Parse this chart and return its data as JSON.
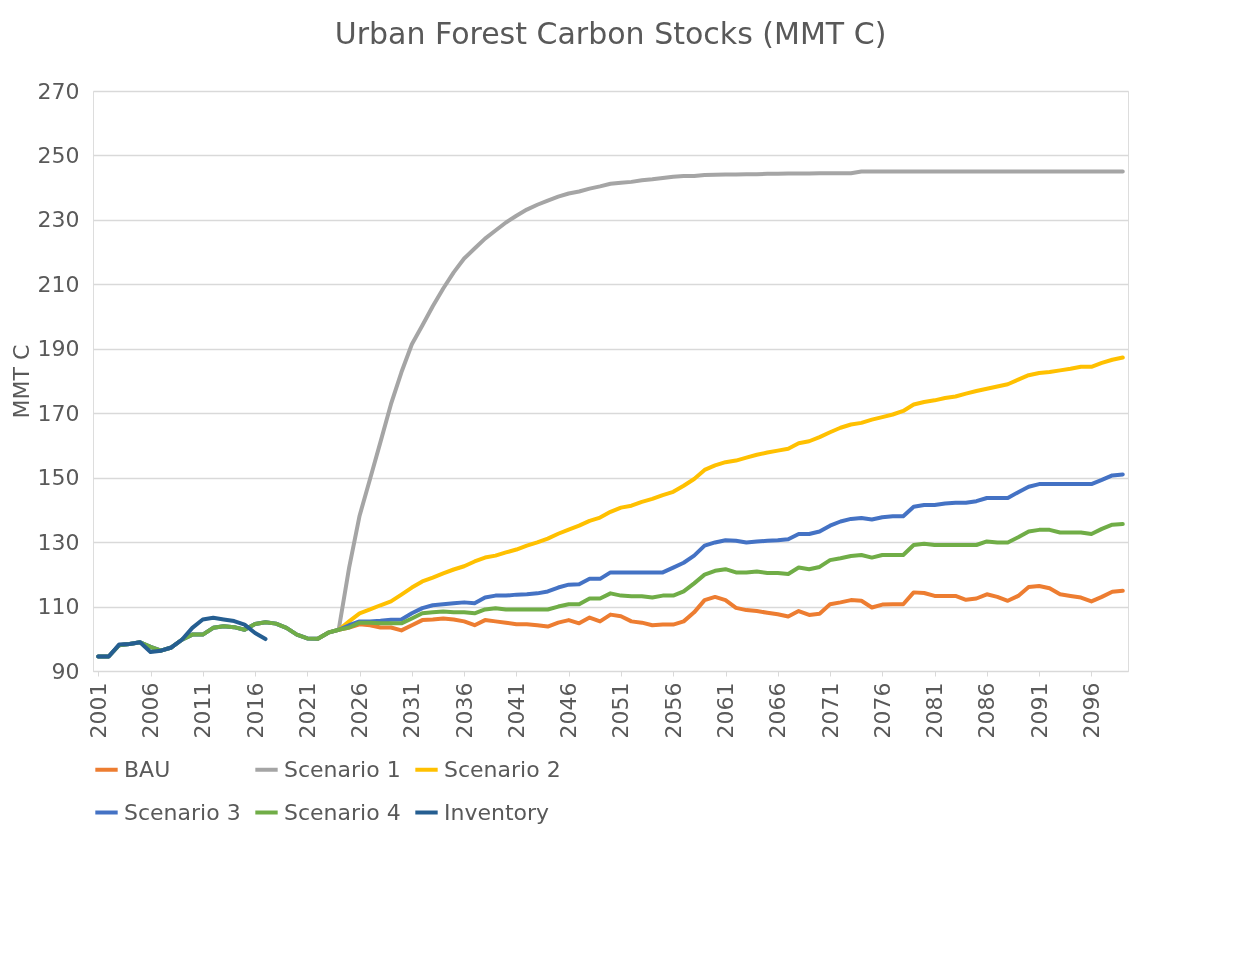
{
  "chart_data": {
    "type": "line",
    "title": "Urban Forest Carbon Stocks (MMT C)",
    "ylabel": "MMT C",
    "x": [
      2001,
      2002,
      2003,
      2004,
      2005,
      2006,
      2007,
      2008,
      2009,
      2010,
      2011,
      2012,
      2013,
      2014,
      2015,
      2016,
      2017,
      2018,
      2019,
      2020,
      2021,
      2022,
      2023,
      2024,
      2025,
      2026,
      2027,
      2028,
      2029,
      2030,
      2031,
      2032,
      2033,
      2034,
      2035,
      2036,
      2037,
      2038,
      2039,
      2040,
      2041,
      2042,
      2043,
      2044,
      2045,
      2046,
      2047,
      2048,
      2049,
      2050,
      2051,
      2052,
      2053,
      2054,
      2055,
      2056,
      2057,
      2058,
      2059,
      2060,
      2061,
      2062,
      2063,
      2064,
      2065,
      2066,
      2067,
      2068,
      2069,
      2070,
      2071,
      2072,
      2073,
      2074,
      2075,
      2076,
      2077,
      2078,
      2079,
      2080,
      2081,
      2082,
      2083,
      2084,
      2085,
      2086,
      2087,
      2088,
      2089,
      2090,
      2091,
      2092,
      2093,
      2094,
      2095,
      2096,
      2097,
      2098,
      2099
    ],
    "xlim": [
      2000.5,
      2099.5
    ],
    "xticks": [
      2001,
      2006,
      2011,
      2016,
      2021,
      2026,
      2031,
      2036,
      2041,
      2046,
      2051,
      2056,
      2061,
      2066,
      2071,
      2076,
      2081,
      2086,
      2091,
      2096
    ],
    "ylim": [
      90,
      270
    ],
    "yticks": [
      90,
      110,
      130,
      150,
      170,
      190,
      210,
      230,
      250,
      270
    ],
    "grid": "y",
    "legend": "bottom",
    "line_style": "solid",
    "series": [
      {
        "name": "BAU",
        "color": "#ed7d31",
        "values": [
          null,
          null,
          null,
          null,
          null,
          null,
          null,
          null,
          null,
          null,
          null,
          null,
          null,
          null,
          null,
          null,
          null,
          null,
          null,
          null,
          null,
          null,
          null,
          102.8,
          103.5,
          104.5,
          104.2,
          103.5,
          103.5,
          102.6,
          104.2,
          105.8,
          106.0,
          106.3,
          106.0,
          105.4,
          104.2,
          105.8,
          105.4,
          105.0,
          104.5,
          104.5,
          104.2,
          103.8,
          105.0,
          105.8,
          104.8,
          106.6,
          105.4,
          107.5,
          107.0,
          105.4,
          105.0,
          104.2,
          104.4,
          104.4,
          105.4,
          108.2,
          112.0,
          113.0,
          112.0,
          109.6,
          108.9,
          108.6,
          108.1,
          107.6,
          106.9,
          108.6,
          107.4,
          107.8,
          110.7,
          111.3,
          112.0,
          111.8,
          109.7,
          110.6,
          110.7,
          110.7,
          114.4,
          114.2,
          113.3,
          113.3,
          113.3,
          112.1,
          112.5,
          113.8,
          113.0,
          111.8,
          113.3,
          116.1,
          116.4,
          115.7,
          113.8,
          113.3,
          112.8,
          111.6,
          113.0,
          114.6,
          114.9
        ]
      },
      {
        "name": "Scenario 1",
        "color": "#a5a5a5",
        "values": [
          94.5,
          94.5,
          98.0,
          98.4,
          98.9,
          97.5,
          96.3,
          97.3,
          99.7,
          101.3,
          101.3,
          103.4,
          103.9,
          103.6,
          102.8,
          104.6,
          105.1,
          104.7,
          103.4,
          101.3,
          100.1,
          100.0,
          101.9,
          102.8,
          122.1,
          138.2,
          149.6,
          161.1,
          172.8,
          182.7,
          191.4,
          197.2,
          203.2,
          208.7,
          213.7,
          218.0,
          221.1,
          224.2,
          226.7,
          229.2,
          231.3,
          233.2,
          234.7,
          236.0,
          237.2,
          238.2,
          238.8,
          239.7,
          240.4,
          241.2,
          241.5,
          241.8,
          242.3,
          242.6,
          243.0,
          243.4,
          243.6,
          243.6,
          243.9,
          244.0,
          244.1,
          244.1,
          244.2,
          244.2,
          244.3,
          244.3,
          244.4,
          244.4,
          244.4,
          244.5,
          244.5,
          244.5,
          244.5,
          245.0,
          245.0,
          245.0,
          245.0,
          245.0,
          245.0,
          245.0,
          245.0,
          245.0,
          245.0,
          245.0,
          245.0,
          245.0,
          245.0,
          245.0,
          245.0,
          245.0,
          245.0,
          245.0,
          245.0,
          245.0,
          245.0,
          245.0,
          245.0,
          245.0,
          245.0
        ]
      },
      {
        "name": "Scenario 2",
        "color": "#ffc000",
        "values": [
          null,
          null,
          null,
          null,
          null,
          null,
          null,
          null,
          null,
          null,
          null,
          null,
          null,
          null,
          null,
          null,
          null,
          null,
          null,
          null,
          null,
          100.0,
          101.9,
          102.8,
          105.4,
          107.9,
          109.1,
          110.4,
          111.6,
          113.7,
          115.9,
          117.8,
          119.0,
          120.3,
          121.5,
          122.5,
          124.0,
          125.2,
          125.8,
          126.8,
          127.7,
          128.9,
          129.9,
          131.1,
          132.6,
          133.9,
          135.1,
          136.6,
          137.6,
          139.4,
          140.7,
          141.3,
          142.5,
          143.4,
          144.6,
          145.6,
          147.5,
          149.6,
          152.4,
          153.8,
          154.8,
          155.3,
          156.2,
          157.1,
          157.8,
          158.4,
          159.0,
          160.7,
          161.3,
          162.6,
          164.1,
          165.5,
          166.5,
          167.0,
          168.0,
          168.8,
          169.6,
          170.7,
          172.7,
          173.5,
          174.0,
          174.7,
          175.2,
          176.1,
          176.9,
          177.6,
          178.3,
          179.0,
          180.4,
          181.8,
          182.5,
          182.8,
          183.3,
          183.8,
          184.4,
          184.4,
          185.6,
          186.6,
          187.3
        ]
      },
      {
        "name": "Scenario 3",
        "color": "#4472c4",
        "values": [
          94.5,
          94.5,
          98.0,
          98.4,
          98.9,
          97.5,
          96.3,
          97.3,
          99.7,
          101.3,
          101.3,
          103.4,
          103.9,
          103.6,
          102.8,
          104.6,
          105.1,
          104.7,
          103.4,
          101.3,
          100.1,
          100.0,
          101.9,
          102.8,
          104.2,
          105.4,
          105.4,
          105.6,
          105.9,
          106.0,
          107.9,
          109.5,
          110.4,
          110.7,
          111.0,
          111.3,
          111.0,
          112.8,
          113.4,
          113.4,
          113.7,
          113.8,
          114.1,
          114.7,
          115.9,
          116.8,
          116.9,
          118.6,
          118.6,
          120.6,
          120.6,
          120.6,
          120.6,
          120.6,
          120.6,
          122.1,
          123.6,
          125.8,
          128.9,
          129.9,
          130.6,
          130.4,
          129.9,
          130.2,
          130.4,
          130.6,
          130.9,
          132.5,
          132.5,
          133.3,
          135.1,
          136.4,
          137.2,
          137.5,
          137.0,
          137.7,
          138.0,
          138.0,
          141.0,
          141.5,
          141.5,
          142.0,
          142.2,
          142.2,
          142.7,
          143.7,
          143.7,
          143.7,
          145.5,
          147.2,
          148.0,
          148.0,
          148.0,
          148.0,
          148.0,
          148.0,
          149.3,
          150.7,
          151.0
        ]
      },
      {
        "name": "Scenario 4",
        "color": "#70ad47",
        "values": [
          94.5,
          94.5,
          98.0,
          98.4,
          98.9,
          97.5,
          96.3,
          97.3,
          99.7,
          101.3,
          101.3,
          103.4,
          103.9,
          103.6,
          102.8,
          104.6,
          105.1,
          104.7,
          103.4,
          101.3,
          100.1,
          100.0,
          101.9,
          102.8,
          103.5,
          105.0,
          105.0,
          104.8,
          104.8,
          104.8,
          106.3,
          107.9,
          108.2,
          108.5,
          108.2,
          108.2,
          107.9,
          109.1,
          109.5,
          109.1,
          109.1,
          109.1,
          109.1,
          109.1,
          110.0,
          110.7,
          110.7,
          112.5,
          112.5,
          114.1,
          113.4,
          113.2,
          113.2,
          112.8,
          113.4,
          113.4,
          114.7,
          117.2,
          119.9,
          121.1,
          121.6,
          120.6,
          120.6,
          120.9,
          120.4,
          120.4,
          120.1,
          122.1,
          121.6,
          122.3,
          124.4,
          125.0,
          125.7,
          126.0,
          125.2,
          126.0,
          126.0,
          126.0,
          129.1,
          129.5,
          129.1,
          129.1,
          129.1,
          129.1,
          129.1,
          130.2,
          129.9,
          129.9,
          131.5,
          133.3,
          133.8,
          133.8,
          133.0,
          133.0,
          133.0,
          132.5,
          134.1,
          135.4,
          135.6
        ]
      },
      {
        "name": "Inventory",
        "color": "#255e91",
        "x": [
          2001,
          2002,
          2003,
          2004,
          2005,
          2006,
          2007,
          2008,
          2009,
          2010,
          2011,
          2012,
          2013,
          2014,
          2015,
          2016,
          2017
        ],
        "values": [
          94.5,
          94.5,
          98.2,
          98.4,
          98.9,
          95.9,
          96.3,
          97.3,
          99.7,
          103.4,
          106.0,
          106.5,
          106.0,
          105.5,
          104.4,
          101.8,
          99.9
        ]
      }
    ]
  }
}
